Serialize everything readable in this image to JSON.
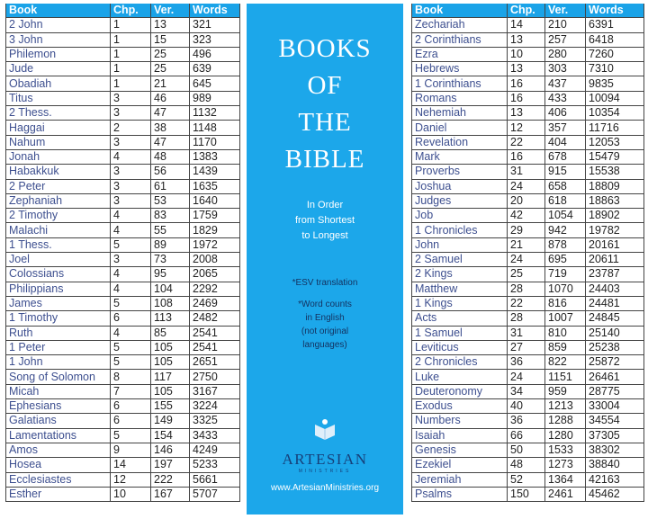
{
  "columns": [
    "Book",
    "Chp.",
    "Ver.",
    "Words"
  ],
  "left_table": [
    [
      "2 John",
      1,
      13,
      321
    ],
    [
      "3 John",
      1,
      15,
      323
    ],
    [
      "Philemon",
      1,
      25,
      496
    ],
    [
      "Jude",
      1,
      25,
      639
    ],
    [
      "Obadiah",
      1,
      21,
      645
    ],
    [
      "Titus",
      3,
      46,
      989
    ],
    [
      "2 Thess.",
      3,
      47,
      1132
    ],
    [
      "Haggai",
      2,
      38,
      1148
    ],
    [
      "Nahum",
      3,
      47,
      1170
    ],
    [
      "Jonah",
      4,
      48,
      1383
    ],
    [
      "Habakkuk",
      3,
      56,
      1439
    ],
    [
      "2 Peter",
      3,
      61,
      1635
    ],
    [
      "Zephaniah",
      3,
      53,
      1640
    ],
    [
      "2 Timothy",
      4,
      83,
      1759
    ],
    [
      "Malachi",
      4,
      55,
      1829
    ],
    [
      "1 Thess.",
      5,
      89,
      1972
    ],
    [
      "Joel",
      3,
      73,
      2008
    ],
    [
      "Colossians",
      4,
      95,
      2065
    ],
    [
      "Philippians",
      4,
      104,
      2292
    ],
    [
      "James",
      5,
      108,
      2469
    ],
    [
      "1 Timothy",
      6,
      113,
      2482
    ],
    [
      "Ruth",
      4,
      85,
      2541
    ],
    [
      "1 Peter",
      5,
      105,
      2541
    ],
    [
      "1 John",
      5,
      105,
      2651
    ],
    [
      "Song of Solomon",
      8,
      117,
      2750
    ],
    [
      "Micah",
      7,
      105,
      3167
    ],
    [
      "Ephesians",
      6,
      155,
      3224
    ],
    [
      "Galatians",
      6,
      149,
      3325
    ],
    [
      "Lamentations",
      5,
      154,
      3433
    ],
    [
      "Amos",
      9,
      146,
      4249
    ],
    [
      "Hosea",
      14,
      197,
      5233
    ],
    [
      "Ecclesiastes",
      12,
      222,
      5661
    ],
    [
      "Esther",
      10,
      167,
      5707
    ]
  ],
  "right_table": [
    [
      "Zechariah",
      14,
      210,
      6391
    ],
    [
      "2 Corinthians",
      13,
      257,
      6418
    ],
    [
      "Ezra",
      10,
      280,
      7260
    ],
    [
      "Hebrews",
      13,
      303,
      7310
    ],
    [
      "1 Corinthians",
      16,
      437,
      9835
    ],
    [
      "Romans",
      16,
      433,
      10094
    ],
    [
      "Nehemiah",
      13,
      406,
      10354
    ],
    [
      "Daniel",
      12,
      357,
      11716
    ],
    [
      "Revelation",
      22,
      404,
      12053
    ],
    [
      "Mark",
      16,
      678,
      15479
    ],
    [
      "Proverbs",
      31,
      915,
      15538
    ],
    [
      "Joshua",
      24,
      658,
      18809
    ],
    [
      "Judges",
      20,
      618,
      18863
    ],
    [
      "Job",
      42,
      1054,
      18902
    ],
    [
      "1 Chronicles",
      29,
      942,
      19782
    ],
    [
      "John",
      21,
      878,
      20161
    ],
    [
      "2 Samuel",
      24,
      695,
      20611
    ],
    [
      "2 Kings",
      25,
      719,
      23787
    ],
    [
      "Matthew",
      28,
      1070,
      24403
    ],
    [
      "1 Kings",
      22,
      816,
      24481
    ],
    [
      "Acts",
      28,
      1007,
      24845
    ],
    [
      "1 Samuel",
      31,
      810,
      25140
    ],
    [
      "Leviticus",
      27,
      859,
      25238
    ],
    [
      "2 Chronicles",
      36,
      822,
      25872
    ],
    [
      "Luke",
      24,
      1151,
      26461
    ],
    [
      "Deuteronomy",
      34,
      959,
      28775
    ],
    [
      "Exodus",
      40,
      1213,
      33004
    ],
    [
      "Numbers",
      36,
      1288,
      34554
    ],
    [
      "Isaiah",
      66,
      1280,
      37305
    ],
    [
      "Genesis",
      50,
      1533,
      38302
    ],
    [
      "Ezekiel",
      48,
      1273,
      38840
    ],
    [
      "Jeremiah",
      52,
      1364,
      42163
    ],
    [
      "Psalms",
      150,
      2461,
      45462
    ]
  ],
  "panel": {
    "title_lines": [
      "BOOKS",
      "OF",
      "THE",
      "BIBLE"
    ],
    "subtitle_lines": [
      "In Order",
      "from Shortest",
      "to Longest"
    ],
    "note1": "*ESV translation",
    "note2_lines": [
      "*Word counts",
      "in English",
      "(not original",
      "languages)"
    ],
    "brand": "ARTESIAN",
    "brand_sub": "MINISTRIES",
    "url": "www.ArtesianMinistries.org",
    "logo_icon": "open-book-figure-icon"
  },
  "colors": {
    "accent": "#1ca7ea",
    "book_text": "#3d4f8f",
    "brand": "#16407a"
  }
}
